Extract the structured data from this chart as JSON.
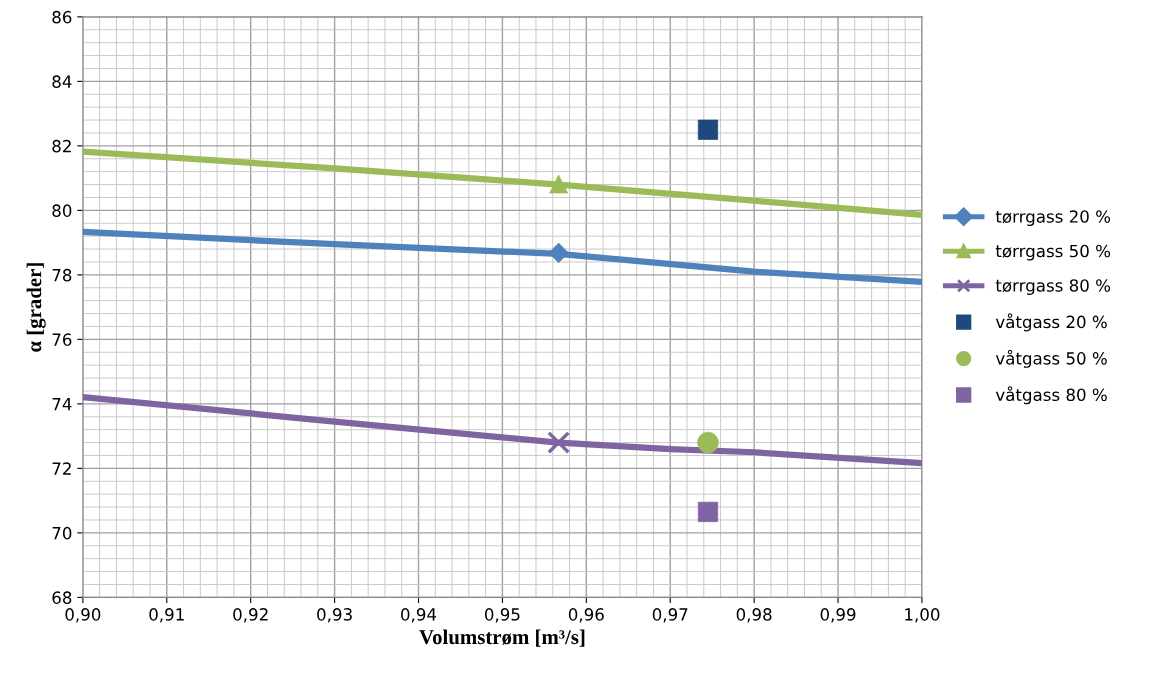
{
  "chart_data": {
    "type": "line",
    "xlabel": "Volumstrøm [m³/s]",
    "ylabel": "α [grader]",
    "xlim": [
      0.9,
      1.0
    ],
    "xticks": [
      {
        "value": 0.9,
        "label": "0,90"
      },
      {
        "value": 0.91,
        "label": "0,91"
      },
      {
        "value": 0.92,
        "label": "0,92"
      },
      {
        "value": 0.93,
        "label": "0,93"
      },
      {
        "value": 0.94,
        "label": "0,94"
      },
      {
        "value": 0.95,
        "label": "0,95"
      },
      {
        "value": 0.96,
        "label": "0,96"
      },
      {
        "value": 0.97,
        "label": "0,97"
      },
      {
        "value": 0.98,
        "label": "0,98"
      },
      {
        "value": 0.99,
        "label": "0,99"
      },
      {
        "value": 1.0,
        "label": "1,00"
      }
    ],
    "ylim": [
      68,
      86
    ],
    "yticks": [
      68,
      70,
      72,
      74,
      76,
      78,
      80,
      82,
      84,
      86
    ],
    "grid": true,
    "legend": "right",
    "series": [
      {
        "name": "tørrgass 20 %",
        "color": "#4f81bd",
        "x": [
          0.9,
          0.93,
          0.9567,
          0.98,
          1.0
        ],
        "values": [
          79.33,
          78.95,
          78.65,
          78.1,
          77.78
        ]
      },
      {
        "type": "scatter",
        "color": "#4f81bd",
        "marker": "diamond",
        "x": [
          0.9567
        ],
        "values": [
          78.68
        ]
      },
      {
        "name": "tørrgass 50 %",
        "color": "#9bbb59",
        "x": [
          0.9,
          0.93,
          0.9567,
          0.98,
          1.0
        ],
        "values": [
          81.82,
          81.3,
          80.8,
          80.3,
          79.86
        ]
      },
      {
        "type": "scatter",
        "color": "#9bbb59",
        "marker": "triangle",
        "x": [
          0.9567
        ],
        "values": [
          80.82
        ]
      },
      {
        "name": "tørrgass 80 %",
        "color": "#8064a2",
        "x": [
          0.9,
          0.93,
          0.9567,
          0.97,
          0.98,
          1.0
        ],
        "values": [
          74.21,
          73.45,
          72.8,
          72.6,
          72.5,
          72.16
        ]
      },
      {
        "type": "scatter",
        "color": "#8064a2",
        "marker": "cross",
        "x": [
          0.9567
        ],
        "values": [
          72.8
        ]
      },
      {
        "name": "våtgass 20 %",
        "type": "scatter",
        "color": "#1f497d",
        "marker": "square",
        "x": [
          0.9745
        ],
        "values": [
          82.5
        ]
      },
      {
        "name": "våtgass 50 %",
        "type": "scatter",
        "color": "#9bbb59",
        "marker": "circle",
        "x": [
          0.9745
        ],
        "values": [
          72.8
        ]
      },
      {
        "name": "våtgass 80 %",
        "type": "scatter",
        "color": "#8064a2",
        "marker": "square",
        "x": [
          0.9745
        ],
        "values": [
          70.65
        ]
      }
    ]
  }
}
